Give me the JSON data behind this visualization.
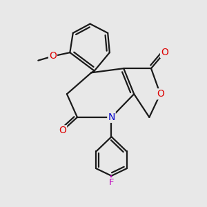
{
  "bg_color": "#e8e8e8",
  "bond_color": "#1a1a1a",
  "bond_width": 1.6,
  "atom_colors": {
    "O": "#dd0000",
    "N": "#0000cc",
    "F": "#bb00bb",
    "C": "#1a1a1a"
  },
  "figsize": [
    3.0,
    3.0
  ],
  "dpi": 100
}
